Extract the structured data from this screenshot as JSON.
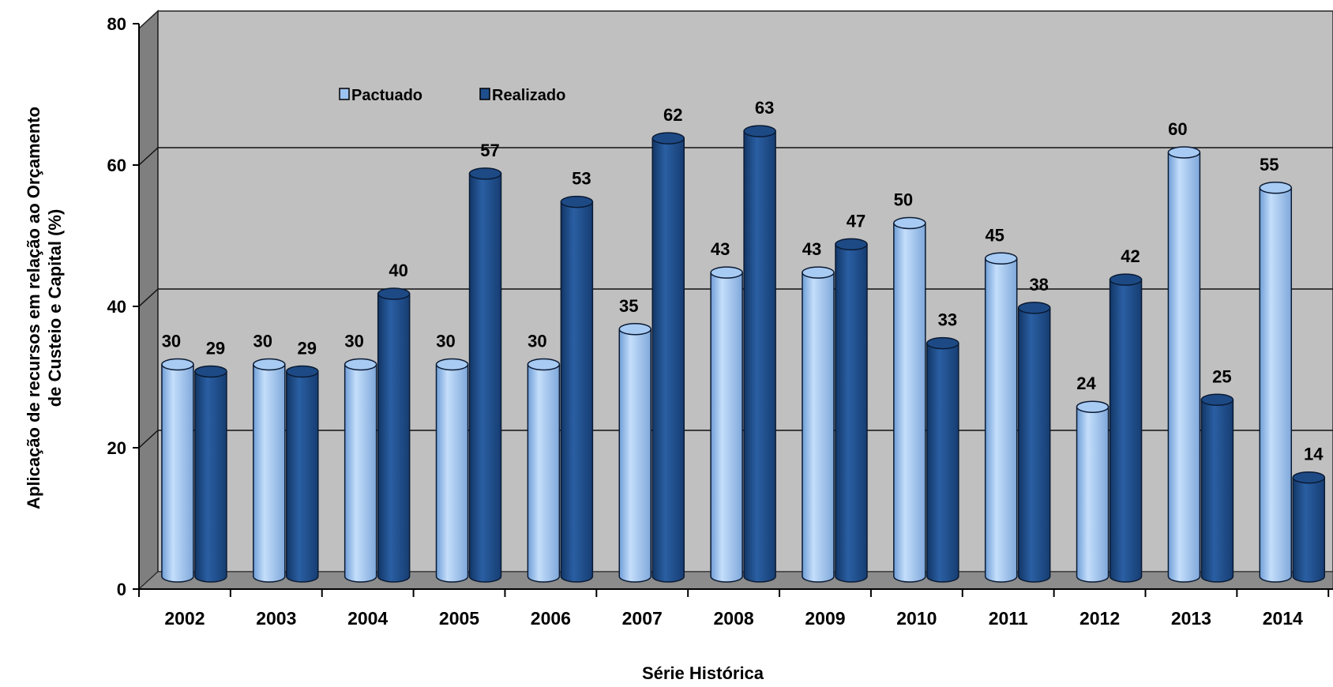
{
  "chart_data": {
    "type": "bar",
    "variant": "3d-cylinder",
    "categories": [
      "2002",
      "2003",
      "2004",
      "2005",
      "2006",
      "2007",
      "2008",
      "2009",
      "2010",
      "2011",
      "2012",
      "2013",
      "2014"
    ],
    "series": [
      {
        "name": "Pactuado",
        "values": [
          30,
          30,
          30,
          30,
          30,
          35,
          43,
          43,
          50,
          45,
          24,
          60,
          55
        ]
      },
      {
        "name": "Realizado",
        "values": [
          29,
          29,
          40,
          57,
          53,
          62,
          63,
          47,
          33,
          38,
          42,
          25,
          14
        ]
      }
    ],
    "xlabel": "Série Histórica",
    "ylabel": "Aplicação de recursos em relação ao Orçamento de Custeio e Capital (%)",
    "ylim": [
      0,
      80
    ],
    "yticks": [
      0,
      20,
      40,
      60,
      80
    ],
    "grid": true,
    "legend_position": "top-left",
    "colors": {
      "Pactuado": "#9dc3f0",
      "Realizado": "#1f4e8c",
      "wall": "#c0c0c0",
      "side_wall": "#808080",
      "floor": "#8a8a8a"
    }
  }
}
